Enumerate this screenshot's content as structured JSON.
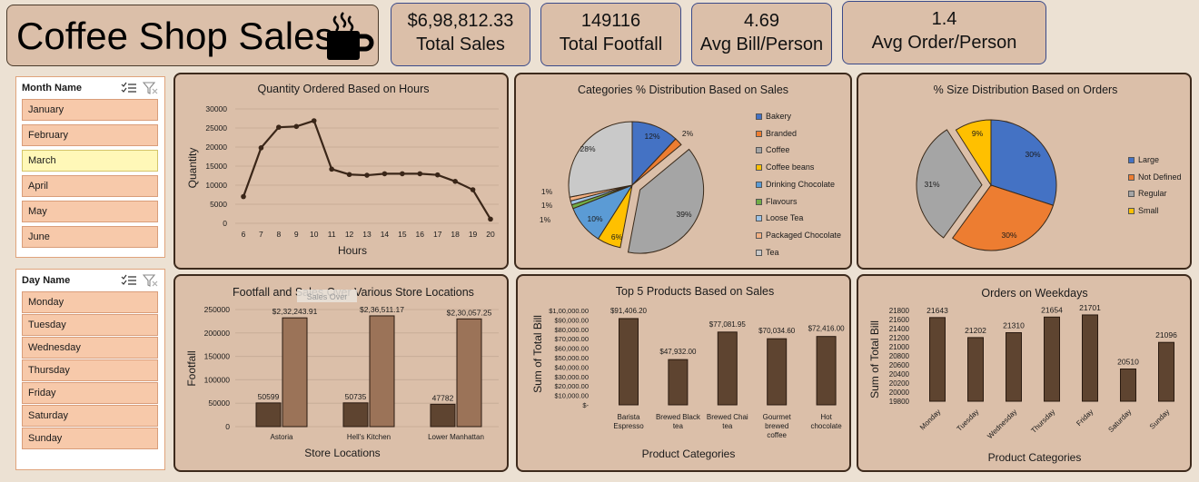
{
  "header": {
    "title": "Coffee Shop Sales"
  },
  "kpis": [
    {
      "value": "$6,98,812.33",
      "label": "Total Sales"
    },
    {
      "value": "149116",
      "label": "Total Footfall"
    },
    {
      "value": "4.69",
      "label": "Avg Bill/Person"
    },
    {
      "value": "1.4",
      "label": "Avg Order/Person"
    }
  ],
  "month_slicer": {
    "header": "Month Name",
    "items": [
      "January",
      "February",
      "March",
      "April",
      "May",
      "June"
    ],
    "selected": "March"
  },
  "day_slicer": {
    "header": "Day Name",
    "items": [
      "Monday",
      "Tuesday",
      "Wednesday",
      "Thursday",
      "Friday",
      "Saturday",
      "Sunday"
    ]
  },
  "colors": {
    "bar_dark": "#5e4430",
    "bar_light": "#9b7358",
    "line": "#3a2618",
    "pie": [
      "#4472c4",
      "#ed7d31",
      "#a5a5a5",
      "#ffc000",
      "#5b9bd5",
      "#70ad47",
      "#9dc3e6",
      "#f4b183",
      "#c9c9c9"
    ]
  },
  "chart_data": [
    {
      "type": "line",
      "title": "Quantity Ordered Based on Hours",
      "xlabel": "Hours",
      "ylabel": "Quantity",
      "x": [
        6,
        7,
        8,
        9,
        10,
        11,
        12,
        13,
        14,
        15,
        16,
        17,
        18,
        19,
        20
      ],
      "values": [
        7000,
        19800,
        25200,
        25400,
        26900,
        14200,
        12800,
        12600,
        13000,
        13000,
        13000,
        12700,
        11000,
        8800,
        1100
      ],
      "ylim": [
        0,
        30000
      ],
      "yticks": [
        "0",
        "5000",
        "10000",
        "15000",
        "20000",
        "25000",
        "30000"
      ],
      "grid": true
    },
    {
      "type": "pie",
      "title": "Categories % Distribution Based on Sales",
      "labels": [
        "Bakery",
        "Branded",
        "Coffee",
        "Coffee beans",
        "Drinking Chocolate",
        "Flavours",
        "Loose Tea",
        "Packaged Chocolate",
        "Tea"
      ],
      "values": [
        12,
        2,
        39,
        6,
        10,
        1,
        1,
        1,
        28
      ],
      "data_labels": [
        "12%",
        "2%",
        "39%",
        "6%",
        "10%",
        "1%",
        "1%",
        "1%",
        "28%"
      ],
      "legend": "right"
    },
    {
      "type": "pie",
      "title": "% Size Distribution Based on Orders",
      "labels": [
        "Large",
        "Not Defined",
        "Regular",
        "Small"
      ],
      "values": [
        30,
        30,
        31,
        9
      ],
      "data_labels": [
        "30%",
        "30%",
        "31%",
        "9%"
      ],
      "legend": "right"
    },
    {
      "type": "bar",
      "title": "Footfall and Sales Over Various Store Locations",
      "xlabel": "Store Locations",
      "ylabel": "Footfall",
      "categories": [
        "Astoria",
        "Hell's Kitchen",
        "Lower Manhattan"
      ],
      "series": [
        {
          "values": [
            50599,
            50735,
            47782
          ],
          "labels": [
            "50599",
            "50735",
            "47782"
          ]
        },
        {
          "values": [
            232243.91,
            236511.17,
            230057.25
          ],
          "labels": [
            "$2,32,243.91",
            "$2,36,511.17",
            "$2,30,057.25"
          ]
        }
      ],
      "ylim": [
        0,
        250000
      ],
      "yticks": [
        "0",
        "50000",
        "100000",
        "150000",
        "200000",
        "250000"
      ],
      "overlay_text": "Sales Over"
    },
    {
      "type": "bar",
      "title": "Top 5 Products Based on Sales",
      "xlabel": "Product Categories",
      "ylabel": "Sum of Total Bill",
      "categories": [
        "Barista Espresso",
        "Brewed Black tea",
        "Brewed Chai tea",
        "Gourmet brewed coffee",
        "Hot chocolate"
      ],
      "values": [
        91406.2,
        47932,
        77081.95,
        70034.6,
        72416
      ],
      "data_labels": [
        "$91,406.20",
        "$47,932.00",
        "$77,081.95",
        "$70,034.60",
        "$72,416.00"
      ],
      "ylim": [
        0,
        100000
      ],
      "yticks": [
        "$-",
        "$10,000.00",
        "$20,000.00",
        "$30,000.00",
        "$40,000.00",
        "$50,000.00",
        "$60,000.00",
        "$70,000.00",
        "$80,000.00",
        "$90,000.00",
        "$1,00,000.00"
      ]
    },
    {
      "type": "bar",
      "title": "Orders on Weekdays",
      "xlabel": "Product Categories",
      "ylabel": "Sum of Total Bill",
      "categories": [
        "Monday",
        "Tuesday",
        "Wednesday",
        "Thursday",
        "Friday",
        "Saturday",
        "Sunday"
      ],
      "values": [
        21643,
        21202,
        21310,
        21654,
        21701,
        20510,
        21096
      ],
      "data_labels": [
        "21643",
        "21202",
        "21310",
        "21654",
        "21701",
        "20510",
        "21096"
      ],
      "ylim": [
        19800,
        21800
      ],
      "yticks": [
        "19800",
        "20000",
        "20200",
        "20400",
        "20600",
        "20800",
        "21000",
        "21200",
        "21400",
        "21600",
        "21800"
      ]
    }
  ]
}
